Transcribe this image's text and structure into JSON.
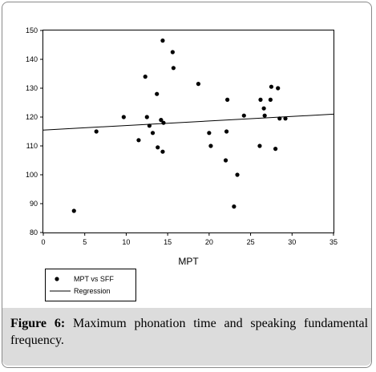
{
  "chart_data": {
    "type": "scatter",
    "xlabel": "MPT",
    "ylabel": "",
    "xlim": [
      0,
      35
    ],
    "ylim": [
      80,
      150
    ],
    "x_ticks": [
      "0",
      "5",
      "10",
      "15",
      "20",
      "25",
      "30",
      "35"
    ],
    "y_ticks": [
      "80",
      "90",
      "100",
      "110",
      "120",
      "130",
      "140",
      "150"
    ],
    "grid": false,
    "legend_position": "bottom-left",
    "series": [
      {
        "name": "MPT vs SFF",
        "marker": "circle",
        "color": "#000000",
        "points": [
          [
            3.7,
            87.5
          ],
          [
            6.4,
            115
          ],
          [
            9.7,
            120
          ],
          [
            11.5,
            112
          ],
          [
            12.3,
            134
          ],
          [
            12.5,
            120
          ],
          [
            12.8,
            117
          ],
          [
            13.2,
            114.5
          ],
          [
            13.7,
            128
          ],
          [
            13.8,
            109.5
          ],
          [
            14.2,
            119
          ],
          [
            14.4,
            146.5
          ],
          [
            14.5,
            118
          ],
          [
            14.4,
            108
          ],
          [
            15.6,
            142.5
          ],
          [
            15.7,
            137
          ],
          [
            18.7,
            131.5
          ],
          [
            20.0,
            114.5
          ],
          [
            20.2,
            110
          ],
          [
            22.0,
            105
          ],
          [
            22.1,
            115
          ],
          [
            22.2,
            126
          ],
          [
            23.0,
            89
          ],
          [
            23.4,
            100
          ],
          [
            24.2,
            120.5
          ],
          [
            26.1,
            110
          ],
          [
            26.2,
            126
          ],
          [
            26.6,
            123
          ],
          [
            26.7,
            120.5
          ],
          [
            27.4,
            126
          ],
          [
            27.5,
            130.5
          ],
          [
            28.0,
            109
          ],
          [
            28.3,
            130
          ],
          [
            28.5,
            119.5
          ],
          [
            29.2,
            119.5
          ]
        ]
      },
      {
        "name": "Regression",
        "type": "line",
        "color": "#000000",
        "x": [
          0,
          35
        ],
        "y": [
          115.5,
          121
        ]
      }
    ]
  },
  "figure": {
    "label": "Figure 6:",
    "caption": "Maximum phonation time and speaking fundamental frequency."
  }
}
